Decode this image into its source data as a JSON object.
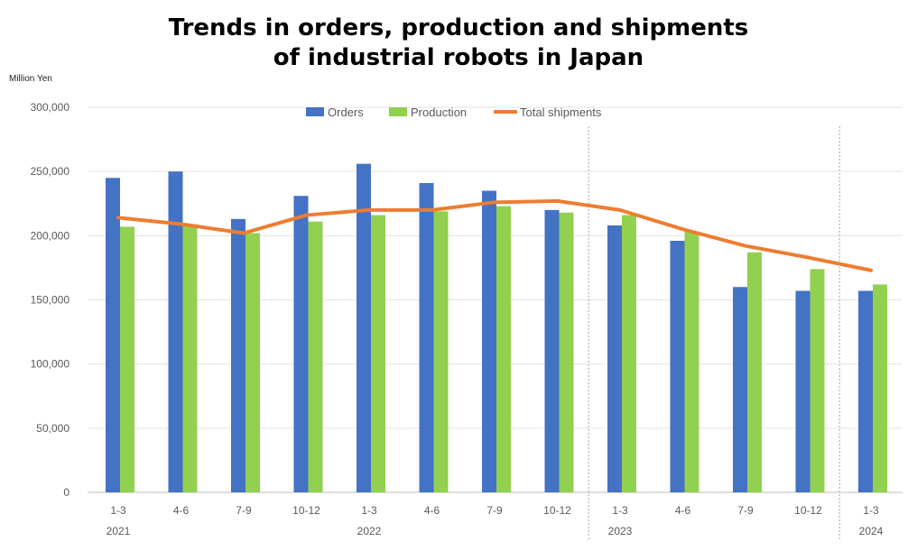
{
  "chart_data": {
    "type": "bar",
    "title_lines": [
      "Trends in orders, production and shipments",
      "of industrial robots in Japan"
    ],
    "unit_label": "Million Yen",
    "categories": [
      "1-3",
      "4-6",
      "7-9",
      "10-12",
      "1-3",
      "4-6",
      "7-9",
      "10-12",
      "1-3",
      "4-6",
      "7-9",
      "10-12",
      "1-3"
    ],
    "year_labels": [
      {
        "label": "2021",
        "index": 0
      },
      {
        "label": "2022",
        "index": 4
      },
      {
        "label": "2023",
        "index": 8
      },
      {
        "label": "2024",
        "index": 12
      }
    ],
    "series": [
      {
        "name": "Orders",
        "kind": "bar",
        "color": "#4472C4",
        "values": [
          245000,
          250000,
          213000,
          231000,
          256000,
          241000,
          235000,
          220000,
          208000,
          196000,
          160000,
          157000,
          157000
        ]
      },
      {
        "name": "Production",
        "kind": "bar",
        "color": "#92D050",
        "values": [
          207000,
          209000,
          202000,
          211000,
          216000,
          219000,
          223000,
          218000,
          216000,
          203000,
          187000,
          174000,
          162000
        ]
      },
      {
        "name": "Total shipments",
        "kind": "line",
        "color": "#ED7D31",
        "values": [
          214000,
          209000,
          202000,
          216000,
          220000,
          220000,
          226000,
          227000,
          220000,
          205000,
          192000,
          183000,
          173000
        ]
      }
    ],
    "ylim": [
      0,
      300000
    ],
    "yticks": [
      0,
      50000,
      100000,
      150000,
      200000,
      250000,
      300000
    ],
    "ytick_labels": [
      "0",
      "50,000",
      "100,000",
      "150,000",
      "200,000",
      "250,000",
      "300,000"
    ],
    "year_separators_after_index": [
      7,
      11
    ],
    "grid": true,
    "legend_position": "top"
  }
}
